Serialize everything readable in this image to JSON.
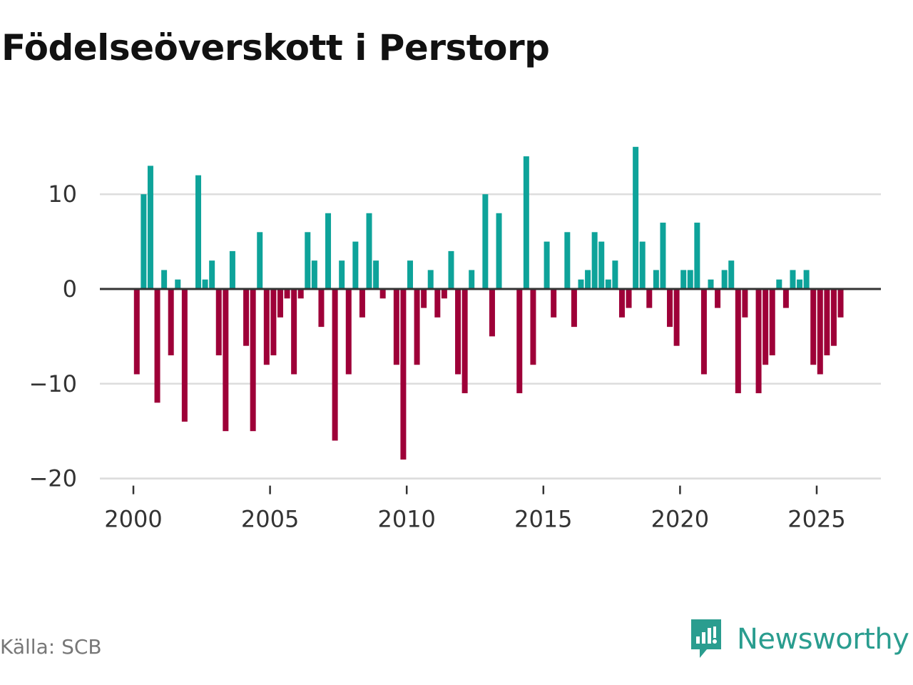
{
  "title": "Födelseöverskott i Perstorp",
  "source": "Källa: SCB",
  "brand": "Newsworthy",
  "colors": {
    "positive": "#0ea39a",
    "negative": "#9e0038",
    "grid": "#dddddd",
    "zero": "#333333",
    "brand": "#2a9d8f"
  },
  "chart_data": {
    "type": "bar",
    "title": "Födelseöverskott i Perstorp",
    "xlabel": "",
    "ylabel": "",
    "ylim": [
      -21,
      15
    ],
    "xlim": [
      2000,
      2026
    ],
    "yticks": [
      10,
      0,
      -10,
      -20
    ],
    "ytick_labels": [
      "10",
      "0",
      "−10",
      "−20"
    ],
    "xticks": [
      2000,
      2005,
      2010,
      2015,
      2020,
      2025
    ],
    "xtick_labels": [
      "2000",
      "2005",
      "2010",
      "2015",
      "2020",
      "2025"
    ],
    "x": [
      2000.125,
      2000.375,
      2000.625,
      2000.875,
      2001.125,
      2001.375,
      2001.625,
      2001.875,
      2002.125,
      2002.375,
      2002.625,
      2002.875,
      2003.125,
      2003.375,
      2003.625,
      2003.875,
      2004.125,
      2004.375,
      2004.625,
      2004.875,
      2005.125,
      2005.375,
      2005.625,
      2005.875,
      2006.125,
      2006.375,
      2006.625,
      2006.875,
      2007.125,
      2007.375,
      2007.625,
      2007.875,
      2008.125,
      2008.375,
      2008.625,
      2008.875,
      2009.125,
      2009.375,
      2009.625,
      2009.875,
      2010.125,
      2010.375,
      2010.625,
      2010.875,
      2011.125,
      2011.375,
      2011.625,
      2011.875,
      2012.125,
      2012.375,
      2012.625,
      2012.875,
      2013.125,
      2013.375,
      2013.625,
      2013.875,
      2014.125,
      2014.375,
      2014.625,
      2014.875,
      2015.125,
      2015.375,
      2015.625,
      2015.875,
      2016.125,
      2016.375,
      2016.625,
      2016.875,
      2017.125,
      2017.375,
      2017.625,
      2017.875,
      2018.125,
      2018.375,
      2018.625,
      2018.875,
      2019.125,
      2019.375,
      2019.625,
      2019.875,
      2020.125,
      2020.375,
      2020.625,
      2020.875,
      2021.125,
      2021.375,
      2021.625,
      2021.875,
      2022.125,
      2022.375,
      2022.625,
      2022.875,
      2023.125,
      2023.375,
      2023.625,
      2023.875,
      2024.125,
      2024.375,
      2024.625,
      2024.875,
      2025.125,
      2025.375,
      2025.625,
      2025.875
    ],
    "values": [
      -9,
      10,
      13,
      -12,
      2,
      -7,
      1,
      -14,
      0,
      12,
      1,
      3,
      -7,
      -15,
      4,
      0,
      -6,
      -15,
      6,
      -8,
      -7,
      -3,
      -1,
      -9,
      -1,
      6,
      3,
      -4,
      8,
      -16,
      3,
      -9,
      5,
      -3,
      8,
      3,
      -1,
      0,
      -8,
      -18,
      3,
      -8,
      -2,
      2,
      -3,
      -1,
      4,
      -9,
      -11,
      2,
      0,
      10,
      -5,
      8,
      0,
      0,
      -11,
      14,
      -8,
      0,
      5,
      -3,
      0,
      6,
      -4,
      1,
      2,
      6,
      5,
      1,
      3,
      -3,
      -2,
      15,
      5,
      -2,
      2,
      7,
      -4,
      -6,
      2,
      2,
      7,
      -9,
      1,
      -2,
      2,
      3,
      -11,
      -3,
      0,
      -11,
      -8,
      -7,
      1,
      -2,
      2,
      1,
      2,
      -8,
      -9,
      -7,
      -6,
      -3
    ]
  }
}
